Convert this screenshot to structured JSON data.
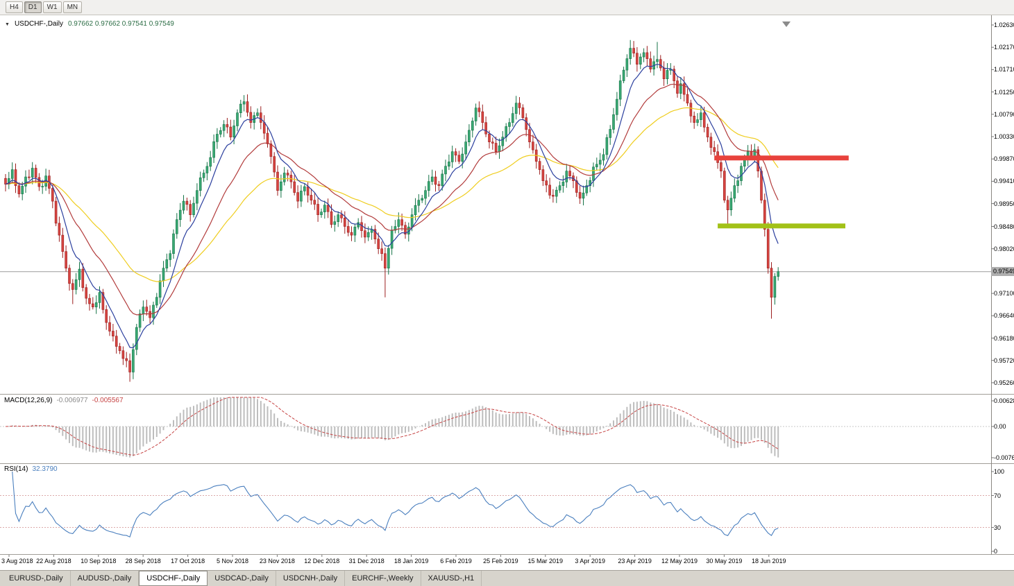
{
  "toolbar": {
    "buttons": [
      {
        "label": "H4",
        "active": false
      },
      {
        "label": "D1",
        "active": true
      },
      {
        "label": "W1",
        "active": false
      },
      {
        "label": "MN",
        "active": false
      }
    ]
  },
  "chart": {
    "header": {
      "collapse_icon": "▼",
      "title": "USDCHF-,Daily",
      "ohlc": "0.97662 0.97662 0.97541 0.97549"
    },
    "current_price": "0.97549",
    "price_axis": [
      "1.02630",
      "1.02170",
      "1.01710",
      "1.01250",
      "1.00790",
      "1.00330",
      "0.99870",
      "0.99410",
      "0.98950",
      "0.98480",
      "0.98020",
      "0.97100",
      "0.96640",
      "0.96180",
      "0.95720",
      "0.95260"
    ],
    "date_axis": [
      "3 Aug 2018",
      "22 Aug 2018",
      "10 Sep 2018",
      "28 Sep 2018",
      "17 Oct 2018",
      "5 Nov 2018",
      "23 Nov 2018",
      "12 Dec 2018",
      "31 Dec 2018",
      "18 Jan 2019",
      "6 Feb 2019",
      "25 Feb 2019",
      "15 Mar 2019",
      "3 Apr 2019",
      "23 Apr 2019",
      "12 May 2019",
      "30 May 2019",
      "18 Jun 2019"
    ]
  },
  "macd_panel": {
    "name": "MACD(12,26,9)",
    "value_main": "-0.006977",
    "value_signal": "-0.005567",
    "axis": [
      "0.006285",
      "0.00",
      "-0.007609"
    ]
  },
  "rsi_panel": {
    "name": "RSI(14)",
    "value": "32.3790",
    "axis": [
      "100",
      "70",
      "30",
      "0"
    ]
  },
  "tabs": [
    {
      "label": "EURUSD-,Daily",
      "active": false
    },
    {
      "label": "AUDUSD-,Daily",
      "active": false
    },
    {
      "label": "USDCHF-,Daily",
      "active": true
    },
    {
      "label": "USDCAD-,Daily",
      "active": false
    },
    {
      "label": "USDCNH-,Daily",
      "active": false
    },
    {
      "label": "EURCHF-,Weekly",
      "active": false
    },
    {
      "label": "XAUUSD-,H1",
      "active": false
    }
  ],
  "colors": {
    "up": "#3aa873",
    "up_border": "#157347",
    "down": "#d64541",
    "down_border": "#9c1e1e",
    "macd_hist": "#bdbdbd",
    "macd_signal": "#c64444",
    "rsi_line": "#4a7fbe",
    "level_dotted": "#dba8a8",
    "price_line": "#9b9b9b",
    "badge_bg": "#aeaeae",
    "ohlc_text": "#2d6e46",
    "resistance": "#e8423c",
    "support": "#a2c117",
    "ma_fast": "#2b3f9e",
    "ma_mid": "#b23b3b",
    "ma_slow": "#efcd1e"
  },
  "chart_data": {
    "type": "candlestick",
    "symbol": "USDCHF",
    "timeframe": "Daily",
    "bars": 231,
    "ylim": [
      0.9526,
      1.0263
    ],
    "current": {
      "open": 0.97662,
      "high": 0.97662,
      "low": 0.97541,
      "close": 0.97549
    },
    "close_keyframes": [
      [
        0,
        0.9935
      ],
      [
        2,
        0.9965
      ],
      [
        4,
        0.9915
      ],
      [
        6,
        0.995
      ],
      [
        8,
        0.9968
      ],
      [
        10,
        0.993
      ],
      [
        12,
        0.9952
      ],
      [
        14,
        0.99
      ],
      [
        16,
        0.983
      ],
      [
        18,
        0.9762
      ],
      [
        20,
        0.9718
      ],
      [
        22,
        0.976
      ],
      [
        24,
        0.97
      ],
      [
        26,
        0.9682
      ],
      [
        28,
        0.9712
      ],
      [
        30,
        0.965
      ],
      [
        32,
        0.9622
      ],
      [
        34,
        0.9592
      ],
      [
        37,
        0.9548
      ],
      [
        39,
        0.964
      ],
      [
        41,
        0.9682
      ],
      [
        43,
        0.966
      ],
      [
        45,
        0.9702
      ],
      [
        47,
        0.9762
      ],
      [
        49,
        0.9792
      ],
      [
        51,
        0.9862
      ],
      [
        53,
        0.99
      ],
      [
        55,
        0.9872
      ],
      [
        57,
        0.9922
      ],
      [
        59,
        0.9958
      ],
      [
        61,
        0.999
      ],
      [
        63,
        1.0038
      ],
      [
        65,
        1.0058
      ],
      [
        67,
        1.0032
      ],
      [
        69,
        1.0082
      ],
      [
        71,
        1.0105
      ],
      [
        73,
        1.0062
      ],
      [
        75,
        1.0082
      ],
      [
        77,
        1.004
      ],
      [
        79,
        0.9992
      ],
      [
        81,
        0.9922
      ],
      [
        83,
        0.9958
      ],
      [
        85,
        0.994
      ],
      [
        87,
        0.99
      ],
      [
        89,
        0.993
      ],
      [
        91,
        0.9902
      ],
      [
        93,
        0.9872
      ],
      [
        95,
        0.9892
      ],
      [
        97,
        0.9852
      ],
      [
        99,
        0.9872
      ],
      [
        101,
        0.9848
      ],
      [
        103,
        0.983
      ],
      [
        105,
        0.9856
      ],
      [
        107,
        0.9826
      ],
      [
        109,
        0.9842
      ],
      [
        111,
        0.9802
      ],
      [
        112,
        0.9792
      ],
      [
        113,
        0.9762
      ],
      [
        115,
        0.984
      ],
      [
        117,
        0.9862
      ],
      [
        119,
        0.9832
      ],
      [
        121,
        0.9872
      ],
      [
        123,
        0.9902
      ],
      [
        125,
        0.9922
      ],
      [
        127,
        0.995
      ],
      [
        129,
        0.9932
      ],
      [
        131,
        0.9972
      ],
      [
        133,
        1.0002
      ],
      [
        135,
        0.9982
      ],
      [
        137,
        1.0022
      ],
      [
        140,
        1.0092
      ],
      [
        142,
        1.0062
      ],
      [
        144,
        1.0022
      ],
      [
        146,
        1.0002
      ],
      [
        148,
        1.0032
      ],
      [
        150,
        1.0062
      ],
      [
        152,
        1.0102
      ],
      [
        154,
        1.0072
      ],
      [
        156,
        1.0022
      ],
      [
        158,
        0.9982
      ],
      [
        160,
        0.9942
      ],
      [
        163,
        0.991
      ],
      [
        165,
        0.9932
      ],
      [
        167,
        0.9962
      ],
      [
        169,
        0.9942
      ],
      [
        171,
        0.9906
      ],
      [
        173,
        0.9932
      ],
      [
        176,
        0.9976
      ],
      [
        178,
        0.9996
      ],
      [
        180,
        1.0048
      ],
      [
        182,
        1.011
      ],
      [
        184,
        1.017
      ],
      [
        186,
        1.0215
      ],
      [
        188,
        1.0182
      ],
      [
        190,
        1.0206
      ],
      [
        192,
        1.0172
      ],
      [
        194,
        1.0192
      ],
      [
        196,
        1.0152
      ],
      [
        198,
        1.0172
      ],
      [
        200,
        1.0122
      ],
      [
        201,
        1.0142
      ],
      [
        203,
        1.0102
      ],
      [
        205,
        1.0062
      ],
      [
        207,
        1.0082
      ],
      [
        209,
        1.0032
      ],
      [
        211,
        1.0002
      ],
      [
        213,
        0.9962
      ],
      [
        214,
        0.9902
      ],
      [
        215,
        0.9882
      ],
      [
        217,
        0.9932
      ],
      [
        219,
        0.9972
      ],
      [
        221,
        1.0002
      ],
      [
        223,
        1.0006
      ],
      [
        224,
        0.9962
      ],
      [
        225,
        0.9902
      ],
      [
        226,
        0.9842
      ],
      [
        227,
        0.9762
      ],
      [
        228,
        0.9702
      ],
      [
        229,
        0.9745
      ],
      [
        230,
        0.97549
      ]
    ],
    "wick_overrides": {
      "20": {
        "low": 0.9688
      },
      "37": {
        "low": 0.9528
      },
      "113": {
        "low": 0.9702
      },
      "186": {
        "high": 1.0232
      },
      "194": {
        "high": 1.0228
      },
      "215": {
        "low": 0.9852
      },
      "228": {
        "low": 0.9658
      }
    },
    "moving_averages": [
      {
        "period": 8,
        "color": "#2b3f9e"
      },
      {
        "period": 21,
        "color": "#b23b3b"
      },
      {
        "period": 45,
        "color": "#efcd1e"
      }
    ],
    "levels": [
      {
        "type": "resistance",
        "price": 0.9989,
        "color": "#e8423c",
        "from_bar": 211,
        "to_bar": 251
      },
      {
        "type": "support",
        "price": 0.9849,
        "color": "#a2c117",
        "from_bar": 212,
        "to_bar": 250
      }
    ],
    "macd": {
      "fast": 12,
      "slow": 26,
      "signal": 9,
      "range": [
        -0.007609,
        0.006285
      ]
    },
    "rsi": {
      "period": 14,
      "levels": [
        70,
        30
      ]
    }
  }
}
